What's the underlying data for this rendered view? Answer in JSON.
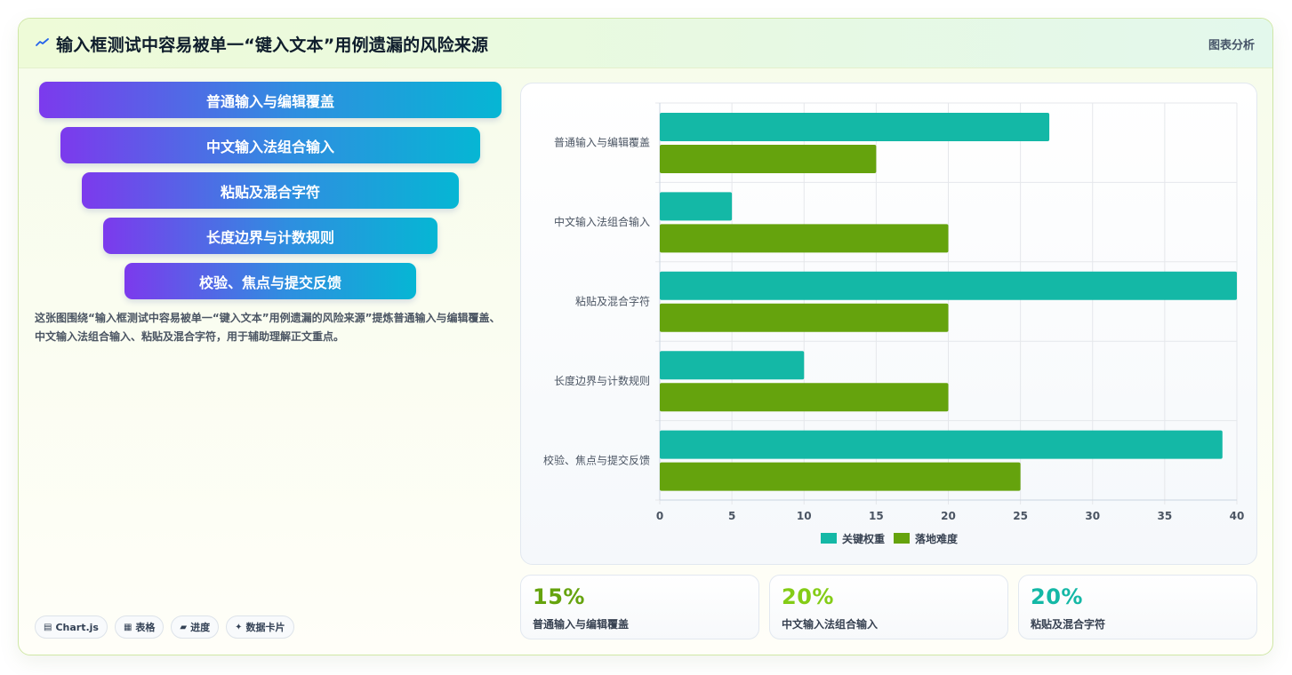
{
  "header": {
    "title": "输入框测试中容易被单一“键入文本”用例遗漏的风险来源",
    "link": "图表分析",
    "icon": "trend-icon"
  },
  "funnel": {
    "steps": [
      "普通输入与编辑覆盖",
      "中文输入法组合输入",
      "粘贴及混合字符",
      "长度边界与计数规则",
      "校验、焦点与提交反馈"
    ]
  },
  "description": "这张图围绕“输入框测试中容易被单一“键入文本”用例遗漏的风险来源”提炼普通输入与编辑覆盖、中文输入法组合输入、粘贴及混合字符，用于辅助理解正文重点。",
  "chips": [
    {
      "icon": "▤",
      "label": "Chart.js"
    },
    {
      "icon": "▦",
      "label": "表格"
    },
    {
      "icon": "▰",
      "label": "进度"
    },
    {
      "icon": "✦",
      "label": "数据卡片"
    }
  ],
  "stats": [
    {
      "value": "15%",
      "label": "普通输入与编辑覆盖",
      "color": "#65a30d"
    },
    {
      "value": "20%",
      "label": "中文输入法组合输入",
      "color": "#84cc16"
    },
    {
      "value": "20%",
      "label": "粘贴及混合字符",
      "color": "#14b8a6"
    }
  ],
  "chart_data": {
    "type": "bar",
    "orientation": "horizontal",
    "categories": [
      "普通输入与编辑覆盖",
      "中文输入法组合输入",
      "粘贴及混合字符",
      "长度边界与计数规则",
      "校验、焦点与提交反馈"
    ],
    "series": [
      {
        "name": "关键权重",
        "color": "#14b8a6",
        "values": [
          27,
          5,
          40,
          10,
          39
        ]
      },
      {
        "name": "落地难度",
        "color": "#65a30d",
        "values": [
          15,
          20,
          20,
          20,
          25
        ]
      }
    ],
    "xlim": [
      0,
      40
    ],
    "xticks": [
      0,
      5,
      10,
      15,
      20,
      25,
      30,
      35,
      40
    ],
    "grid": true,
    "legend": "bottom"
  }
}
